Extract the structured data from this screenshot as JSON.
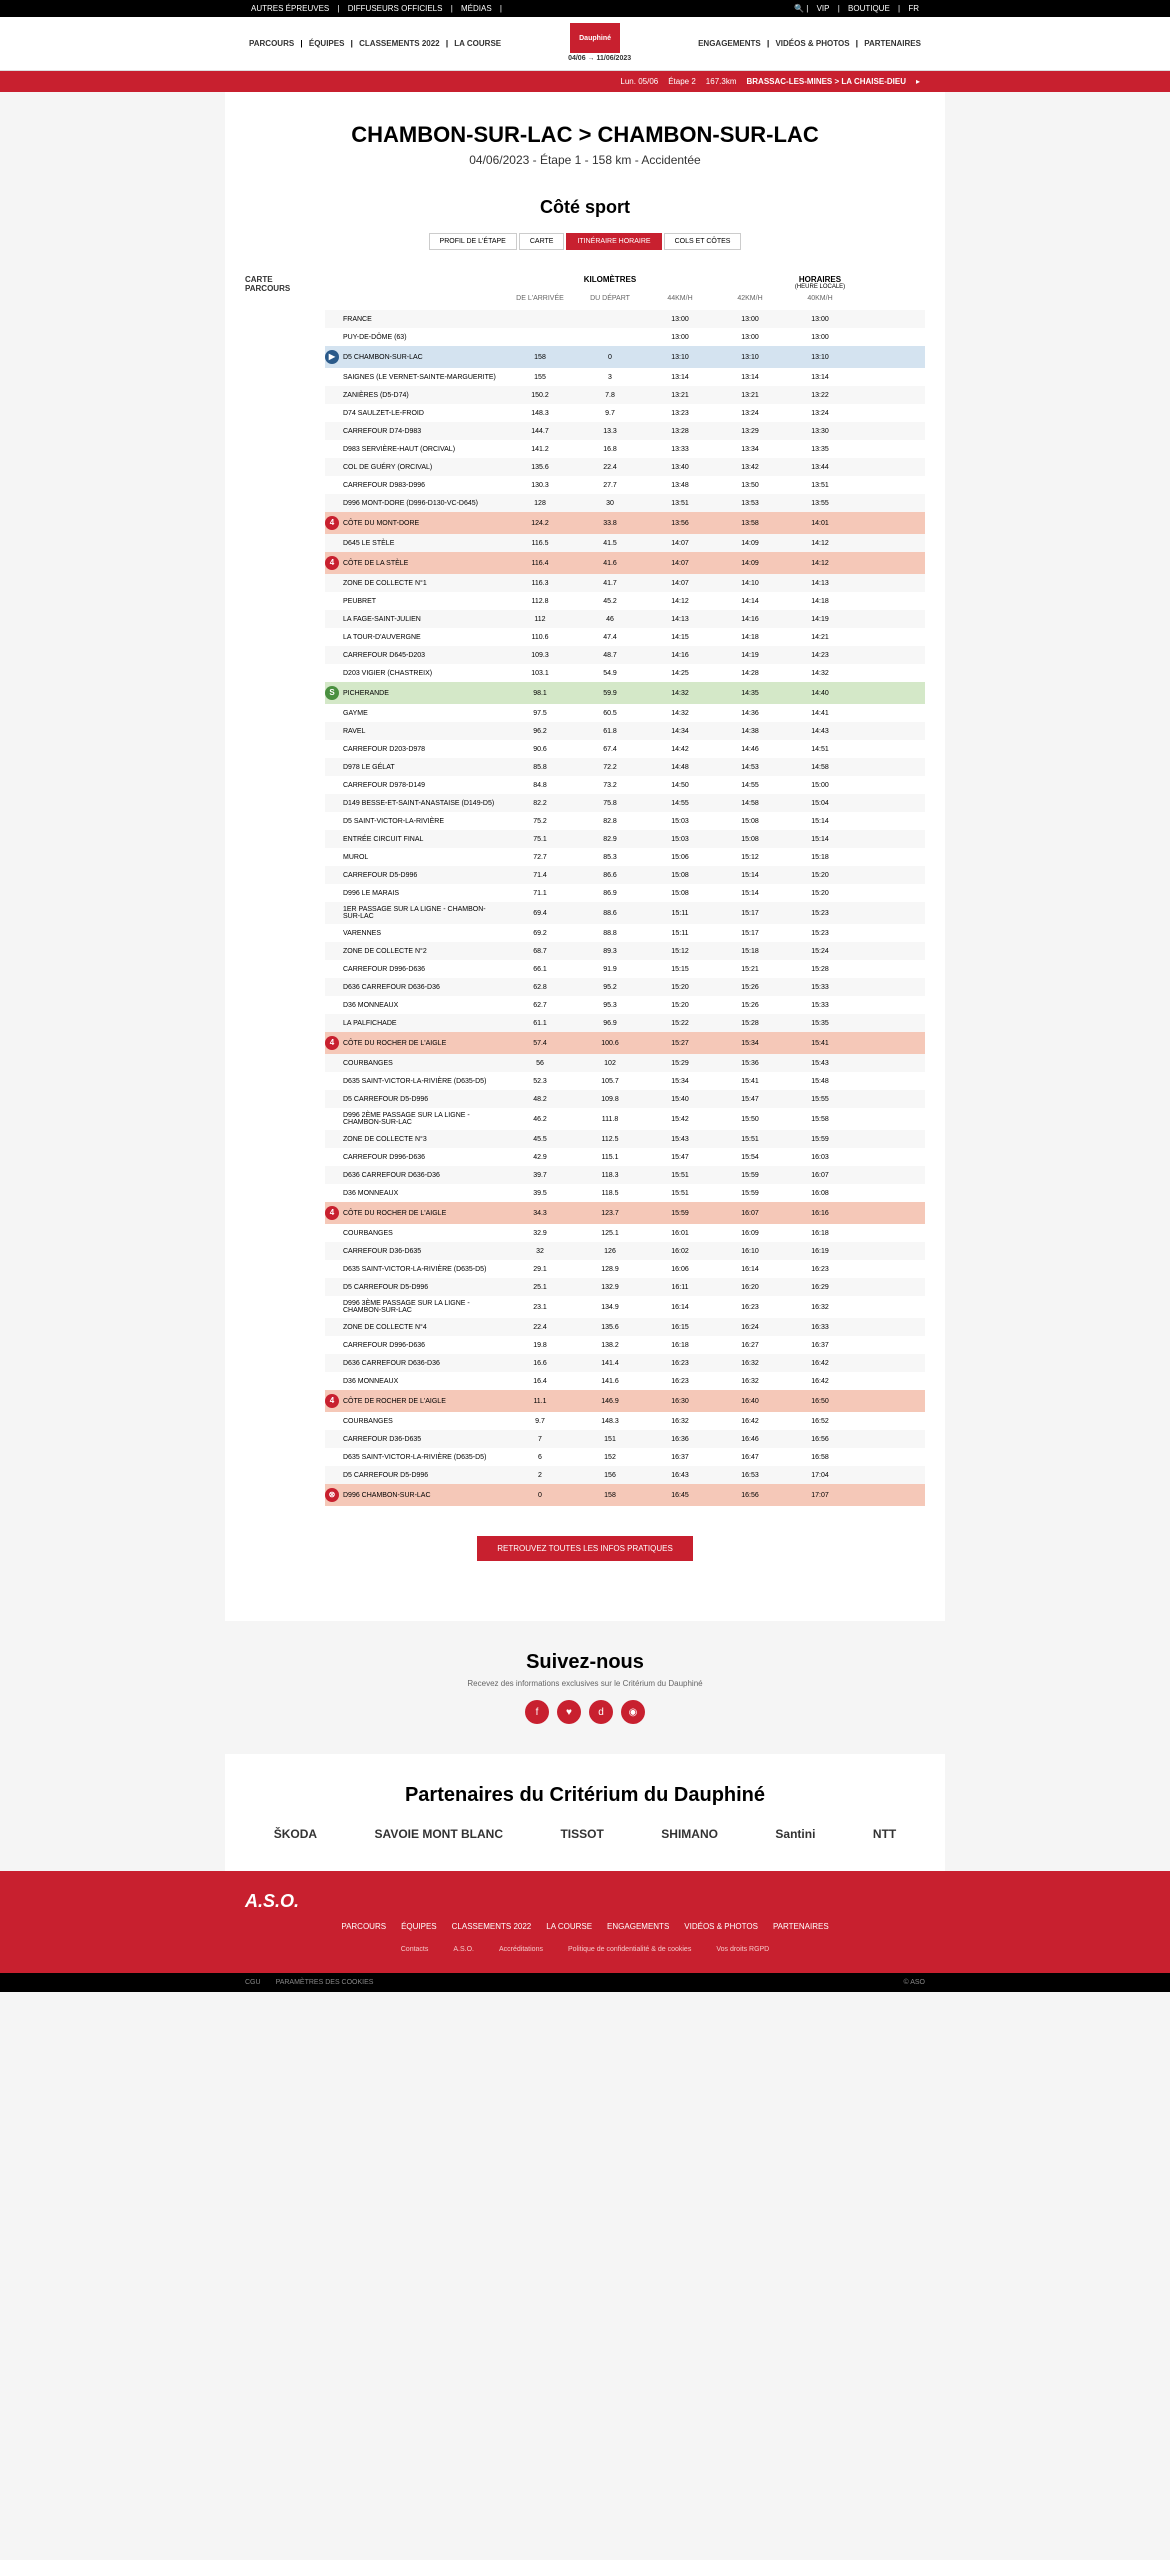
{
  "topbar": {
    "left": [
      "AUTRES ÉPREUVES",
      "DIFFUSEURS OFFICIELS",
      "MÉDIAS"
    ],
    "right": [
      "VIP",
      "BOUTIQUE",
      "FR"
    ]
  },
  "nav": {
    "left": [
      "PARCOURS",
      "ÉQUIPES",
      "CLASSEMENTS 2022",
      "LA COURSE"
    ],
    "right": [
      "ENGAGEMENTS",
      "VIDÉOS & PHOTOS",
      "PARTENAIRES"
    ],
    "dates": "04/06 → 11/06/2023"
  },
  "banner": {
    "date": "Lun. 05/06",
    "stage": "Étape 2",
    "dist": "167.3km",
    "route": "BRASSAC-LES-MINES > LA CHAISE-DIEU"
  },
  "title": "CHAMBON-SUR-LAC > CHAMBON-SUR-LAC",
  "subtitle": "04/06/2023 - Étape 1 - 158 km - Accidentée",
  "section": "Côté sport",
  "tabs": [
    "PROFIL DE L'ÉTAPE",
    "CARTE",
    "ITINÉRAIRE HORAIRE",
    "COLS ET CÔTES"
  ],
  "activeTab": 2,
  "mapLabel": "CARTE PARCOURS",
  "headers": {
    "km": "KILOMÈTRES",
    "hor": "HORAIRES",
    "horSub": "(HEURE LOCALE)"
  },
  "subheaders": [
    "DE L'ARRIVÉE",
    "DU DÉPART",
    "44KM/H",
    "42KM/H",
    "40KM/H"
  ],
  "rows": [
    {
      "t": "",
      "n": "FRANCE",
      "a": "",
      "d": "",
      "h1": "13:00",
      "h2": "13:00",
      "h3": "13:00"
    },
    {
      "t": "",
      "n": "PUY-DE-DÔME (63)",
      "a": "",
      "d": "",
      "h1": "13:00",
      "h2": "13:00",
      "h3": "13:00"
    },
    {
      "t": "start",
      "n": "D5 CHAMBON-SUR-LAC",
      "a": "158",
      "d": "0",
      "h1": "13:10",
      "h2": "13:10",
      "h3": "13:10"
    },
    {
      "t": "",
      "n": "SAIGNES (LE VERNET-SAINTE-MARGUERITE)",
      "a": "155",
      "d": "3",
      "h1": "13:14",
      "h2": "13:14",
      "h3": "13:14"
    },
    {
      "t": "",
      "n": "ZANIÈRES (D5-D74)",
      "a": "150.2",
      "d": "7.8",
      "h1": "13:21",
      "h2": "13:21",
      "h3": "13:22"
    },
    {
      "t": "",
      "n": "D74 SAULZET-LE-FROID",
      "a": "148.3",
      "d": "9.7",
      "h1": "13:23",
      "h2": "13:24",
      "h3": "13:24"
    },
    {
      "t": "",
      "n": "CARREFOUR D74-D983",
      "a": "144.7",
      "d": "13.3",
      "h1": "13:28",
      "h2": "13:29",
      "h3": "13:30"
    },
    {
      "t": "",
      "n": "D983 SERVIÈRE-HAUT (ORCIVAL)",
      "a": "141.2",
      "d": "16.8",
      "h1": "13:33",
      "h2": "13:34",
      "h3": "13:35"
    },
    {
      "t": "",
      "n": "COL DE GUÉRY (ORCIVAL)",
      "a": "135.6",
      "d": "22.4",
      "h1": "13:40",
      "h2": "13:42",
      "h3": "13:44"
    },
    {
      "t": "",
      "n": "CARREFOUR D983-D996",
      "a": "130.3",
      "d": "27.7",
      "h1": "13:48",
      "h2": "13:50",
      "h3": "13:51"
    },
    {
      "t": "",
      "n": "D996 MONT-DORE (D996-D130-VC-D645)",
      "a": "128",
      "d": "30",
      "h1": "13:51",
      "h2": "13:53",
      "h3": "13:55"
    },
    {
      "t": "climb",
      "n": "CÔTE DU MONT-DORE",
      "a": "124.2",
      "d": "33.8",
      "h1": "13:56",
      "h2": "13:58",
      "h3": "14:01"
    },
    {
      "t": "",
      "n": "D645 LE STÈLE",
      "a": "116.5",
      "d": "41.5",
      "h1": "14:07",
      "h2": "14:09",
      "h3": "14:12"
    },
    {
      "t": "climb",
      "n": "CÔTE DE LA STÈLE",
      "a": "116.4",
      "d": "41.6",
      "h1": "14:07",
      "h2": "14:09",
      "h3": "14:12"
    },
    {
      "t": "",
      "n": "ZONE DE COLLECTE N°1",
      "a": "116.3",
      "d": "41.7",
      "h1": "14:07",
      "h2": "14:10",
      "h3": "14:13"
    },
    {
      "t": "",
      "n": "PEUBRET",
      "a": "112.8",
      "d": "45.2",
      "h1": "14:12",
      "h2": "14:14",
      "h3": "14:18"
    },
    {
      "t": "",
      "n": "LA FAGE-SAINT-JULIEN",
      "a": "112",
      "d": "46",
      "h1": "14:13",
      "h2": "14:16",
      "h3": "14:19"
    },
    {
      "t": "",
      "n": "LA TOUR-D'AUVERGNE",
      "a": "110.6",
      "d": "47.4",
      "h1": "14:15",
      "h2": "14:18",
      "h3": "14:21"
    },
    {
      "t": "",
      "n": "CARREFOUR D645-D203",
      "a": "109.3",
      "d": "48.7",
      "h1": "14:16",
      "h2": "14:19",
      "h3": "14:23"
    },
    {
      "t": "",
      "n": "D203 VIGIER (CHASTREIX)",
      "a": "103.1",
      "d": "54.9",
      "h1": "14:25",
      "h2": "14:28",
      "h3": "14:32"
    },
    {
      "t": "sprint",
      "n": "PICHERANDE",
      "a": "98.1",
      "d": "59.9",
      "h1": "14:32",
      "h2": "14:35",
      "h3": "14:40"
    },
    {
      "t": "",
      "n": "GAYME",
      "a": "97.5",
      "d": "60.5",
      "h1": "14:32",
      "h2": "14:36",
      "h3": "14:41"
    },
    {
      "t": "",
      "n": "RAVEL",
      "a": "96.2",
      "d": "61.8",
      "h1": "14:34",
      "h2": "14:38",
      "h3": "14:43"
    },
    {
      "t": "",
      "n": "CARREFOUR D203-D978",
      "a": "90.6",
      "d": "67.4",
      "h1": "14:42",
      "h2": "14:46",
      "h3": "14:51"
    },
    {
      "t": "",
      "n": "D978 LE GÉLAT",
      "a": "85.8",
      "d": "72.2",
      "h1": "14:48",
      "h2": "14:53",
      "h3": "14:58"
    },
    {
      "t": "",
      "n": "CARREFOUR D978-D149",
      "a": "84.8",
      "d": "73.2",
      "h1": "14:50",
      "h2": "14:55",
      "h3": "15:00"
    },
    {
      "t": "",
      "n": "D149 BESSE-ET-SAINT-ANASTAISE (D149-D5)",
      "a": "82.2",
      "d": "75.8",
      "h1": "14:55",
      "h2": "14:58",
      "h3": "15:04"
    },
    {
      "t": "",
      "n": "D5 SAINT-VICTOR-LA-RIVIÈRE",
      "a": "75.2",
      "d": "82.8",
      "h1": "15:03",
      "h2": "15:08",
      "h3": "15:14"
    },
    {
      "t": "",
      "n": "ENTRÉE CIRCUIT FINAL",
      "a": "75.1",
      "d": "82.9",
      "h1": "15:03",
      "h2": "15:08",
      "h3": "15:14"
    },
    {
      "t": "",
      "n": "MUROL",
      "a": "72.7",
      "d": "85.3",
      "h1": "15:06",
      "h2": "15:12",
      "h3": "15:18"
    },
    {
      "t": "",
      "n": "CARREFOUR D5-D996",
      "a": "71.4",
      "d": "86.6",
      "h1": "15:08",
      "h2": "15:14",
      "h3": "15:20"
    },
    {
      "t": "",
      "n": "D996 LE MARAIS",
      "a": "71.1",
      "d": "86.9",
      "h1": "15:08",
      "h2": "15:14",
      "h3": "15:20"
    },
    {
      "t": "",
      "n": "1ER PASSAGE SUR LA LIGNE - CHAMBON-SUR-LAC",
      "a": "69.4",
      "d": "88.6",
      "h1": "15:11",
      "h2": "15:17",
      "h3": "15:23"
    },
    {
      "t": "",
      "n": "VARENNES",
      "a": "69.2",
      "d": "88.8",
      "h1": "15:11",
      "h2": "15:17",
      "h3": "15:23"
    },
    {
      "t": "",
      "n": "ZONE DE COLLECTE N°2",
      "a": "68.7",
      "d": "89.3",
      "h1": "15:12",
      "h2": "15:18",
      "h3": "15:24"
    },
    {
      "t": "",
      "n": "CARREFOUR D996-D636",
      "a": "66.1",
      "d": "91.9",
      "h1": "15:15",
      "h2": "15:21",
      "h3": "15:28"
    },
    {
      "t": "",
      "n": "D636 CARREFOUR D636-D36",
      "a": "62.8",
      "d": "95.2",
      "h1": "15:20",
      "h2": "15:26",
      "h3": "15:33"
    },
    {
      "t": "",
      "n": "D36 MONNEAUX",
      "a": "62.7",
      "d": "95.3",
      "h1": "15:20",
      "h2": "15:26",
      "h3": "15:33"
    },
    {
      "t": "",
      "n": "LA PALFICHADE",
      "a": "61.1",
      "d": "96.9",
      "h1": "15:22",
      "h2": "15:28",
      "h3": "15:35"
    },
    {
      "t": "climb",
      "n": "CÔTE DU ROCHER DE L'AIGLE",
      "a": "57.4",
      "d": "100.6",
      "h1": "15:27",
      "h2": "15:34",
      "h3": "15:41"
    },
    {
      "t": "",
      "n": "COURBANGES",
      "a": "56",
      "d": "102",
      "h1": "15:29",
      "h2": "15:36",
      "h3": "15:43"
    },
    {
      "t": "",
      "n": "D635 SAINT-VICTOR-LA-RIVIÈRE (D635-D5)",
      "a": "52.3",
      "d": "105.7",
      "h1": "15:34",
      "h2": "15:41",
      "h3": "15:48"
    },
    {
      "t": "",
      "n": "D5 CARREFOUR D5-D996",
      "a": "48.2",
      "d": "109.8",
      "h1": "15:40",
      "h2": "15:47",
      "h3": "15:55"
    },
    {
      "t": "",
      "n": "D996 2ÈME PASSAGE SUR LA LIGNE - CHAMBON-SUR-LAC",
      "a": "46.2",
      "d": "111.8",
      "h1": "15:42",
      "h2": "15:50",
      "h3": "15:58"
    },
    {
      "t": "",
      "n": "ZONE DE COLLECTE N°3",
      "a": "45.5",
      "d": "112.5",
      "h1": "15:43",
      "h2": "15:51",
      "h3": "15:59"
    },
    {
      "t": "",
      "n": "CARREFOUR D996-D636",
      "a": "42.9",
      "d": "115.1",
      "h1": "15:47",
      "h2": "15:54",
      "h3": "16:03"
    },
    {
      "t": "",
      "n": "D636 CARREFOUR D636-D36",
      "a": "39.7",
      "d": "118.3",
      "h1": "15:51",
      "h2": "15:59",
      "h3": "16:07"
    },
    {
      "t": "",
      "n": "D36 MONNEAUX",
      "a": "39.5",
      "d": "118.5",
      "h1": "15:51",
      "h2": "15:59",
      "h3": "16:08"
    },
    {
      "t": "climb",
      "n": "CÔTE DU ROCHER DE L'AIGLE",
      "a": "34.3",
      "d": "123.7",
      "h1": "15:59",
      "h2": "16:07",
      "h3": "16:16"
    },
    {
      "t": "",
      "n": "COURBANGES",
      "a": "32.9",
      "d": "125.1",
      "h1": "16:01",
      "h2": "16:09",
      "h3": "16:18"
    },
    {
      "t": "",
      "n": "CARREFOUR D36-D635",
      "a": "32",
      "d": "126",
      "h1": "16:02",
      "h2": "16:10",
      "h3": "16:19"
    },
    {
      "t": "",
      "n": "D635 SAINT-VICTOR-LA-RIVIÈRE (D635-D5)",
      "a": "29.1",
      "d": "128.9",
      "h1": "16:06",
      "h2": "16:14",
      "h3": "16:23"
    },
    {
      "t": "",
      "n": "D5 CARREFOUR D5-D996",
      "a": "25.1",
      "d": "132.9",
      "h1": "16:11",
      "h2": "16:20",
      "h3": "16:29"
    },
    {
      "t": "",
      "n": "D996 3ÈME PASSAGE SUR LA LIGNE - CHAMBON-SUR-LAC",
      "a": "23.1",
      "d": "134.9",
      "h1": "16:14",
      "h2": "16:23",
      "h3": "16:32"
    },
    {
      "t": "",
      "n": "ZONE DE COLLECTE N°4",
      "a": "22.4",
      "d": "135.6",
      "h1": "16:15",
      "h2": "16:24",
      "h3": "16:33"
    },
    {
      "t": "",
      "n": "CARREFOUR D996-D636",
      "a": "19.8",
      "d": "138.2",
      "h1": "16:18",
      "h2": "16:27",
      "h3": "16:37"
    },
    {
      "t": "",
      "n": "D636 CARREFOUR D636-D36",
      "a": "16.6",
      "d": "141.4",
      "h1": "16:23",
      "h2": "16:32",
      "h3": "16:42"
    },
    {
      "t": "",
      "n": "D36 MONNEAUX",
      "a": "16.4",
      "d": "141.6",
      "h1": "16:23",
      "h2": "16:32",
      "h3": "16:42"
    },
    {
      "t": "climb",
      "n": "CÔTE DE ROCHER DE L'AIGLE",
      "a": "11.1",
      "d": "146.9",
      "h1": "16:30",
      "h2": "16:40",
      "h3": "16:50"
    },
    {
      "t": "",
      "n": "COURBANGES",
      "a": "9.7",
      "d": "148.3",
      "h1": "16:32",
      "h2": "16:42",
      "h3": "16:52"
    },
    {
      "t": "",
      "n": "CARREFOUR D36-D635",
      "a": "7",
      "d": "151",
      "h1": "16:36",
      "h2": "16:46",
      "h3": "16:56"
    },
    {
      "t": "",
      "n": "D635 SAINT-VICTOR-LA-RIVIÈRE (D635-D5)",
      "a": "6",
      "d": "152",
      "h1": "16:37",
      "h2": "16:47",
      "h3": "16:58"
    },
    {
      "t": "",
      "n": "D5 CARREFOUR D5-D996",
      "a": "2",
      "d": "156",
      "h1": "16:43",
      "h2": "16:53",
      "h3": "17:04"
    },
    {
      "t": "finish",
      "n": "D996 CHAMBON-SUR-LAC",
      "a": "0",
      "d": "158",
      "h1": "16:45",
      "h2": "16:56",
      "h3": "17:07"
    }
  ],
  "cta": "RETROUVEZ TOUTES LES INFOS PRATIQUES",
  "follow": {
    "title": "Suivez-nous",
    "sub": "Recevez des informations exclusives sur le Critérium du Dauphiné"
  },
  "partnersTitle": "Partenaires du Critérium du Dauphiné",
  "partners": [
    "ŠKODA",
    "SAVOIE MONT BLANC",
    "TISSOT",
    "SHIMANO",
    "Santini",
    "NTT"
  ],
  "footer": {
    "nav": [
      "PARCOURS",
      "ÉQUIPES",
      "CLASSEMENTS 2022",
      "LA COURSE",
      "ENGAGEMENTS",
      "VIDÉOS & PHOTOS",
      "PARTENAIRES"
    ],
    "sub": [
      "Contacts",
      "A.S.O.",
      "Accréditations",
      "Politique de confidentialité & de cookies",
      "Vos droits RGPD"
    ]
  },
  "bottom": {
    "left": [
      "CGU",
      "PARAMÈTRES DES COOKIES"
    ],
    "right": "© ASO"
  }
}
